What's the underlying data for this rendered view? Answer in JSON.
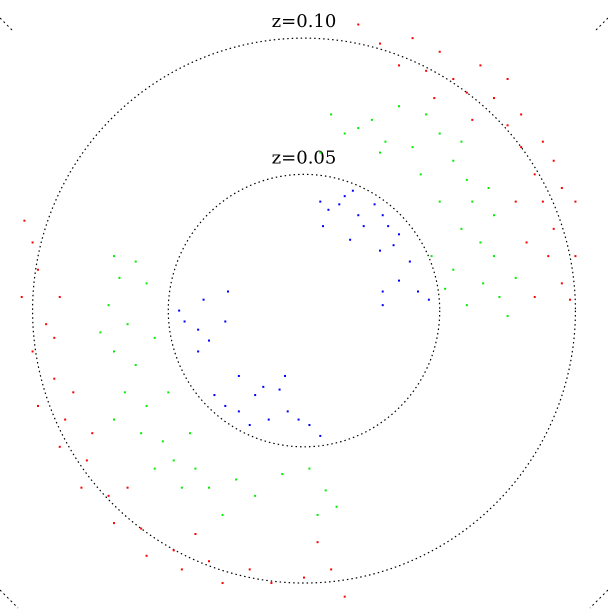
{
  "chart_data": {
    "type": "scatter",
    "xlim": [
      -0.112,
      0.112
    ],
    "ylim": [
      -0.111,
      0.114
    ],
    "circles": [
      {
        "value": 0.05,
        "label": "z=0.05"
      },
      {
        "value": 0.1,
        "label": "z=0.10"
      }
    ],
    "series": [
      {
        "color": "#0000ff",
        "x": [
          0.006,
          0.009,
          0.015,
          0.018,
          0.007,
          0.02,
          0.026,
          0.029,
          0.031,
          0.035,
          0.033,
          0.028,
          0.017,
          0.039,
          0.035,
          0.029,
          0.042,
          0.046,
          0.029,
          0.022,
          0.013,
          -0.046,
          -0.044,
          -0.039,
          -0.037,
          -0.028,
          -0.029,
          -0.035,
          -0.033,
          -0.029,
          -0.024,
          -0.018,
          -0.015,
          -0.009,
          -0.006,
          -0.002,
          0.002,
          0.006,
          -0.013,
          -0.02,
          -0.024,
          -0.007,
          -0.039
        ],
        "y": [
          0.04,
          0.037,
          0.042,
          0.044,
          0.031,
          0.035,
          0.039,
          0.035,
          0.031,
          0.028,
          0.024,
          0.022,
          0.026,
          0.018,
          0.011,
          0.007,
          0.007,
          0.004,
          0.002,
          0.031,
          0.039,
          0.0,
          -0.004,
          -0.007,
          0.004,
          0.007,
          -0.004,
          -0.011,
          -0.031,
          -0.035,
          -0.037,
          -0.031,
          -0.028,
          -0.029,
          -0.037,
          -0.04,
          -0.042,
          -0.046,
          -0.04,
          -0.042,
          -0.024,
          -0.024,
          -0.015
        ]
      },
      {
        "color": "#00ee00",
        "x": [
          0.006,
          0.015,
          0.025,
          0.03,
          0.04,
          0.045,
          0.05,
          0.055,
          0.06,
          0.062,
          0.058,
          0.065,
          0.07,
          0.066,
          0.072,
          0.075,
          0.06,
          0.055,
          0.05,
          0.043,
          0.035,
          0.02,
          0.07,
          0.068,
          0.078,
          0.052,
          0.047,
          0.058,
          0.01,
          0.028,
          -0.07,
          -0.068,
          -0.072,
          -0.065,
          -0.07,
          -0.062,
          -0.066,
          -0.058,
          -0.06,
          -0.052,
          -0.048,
          -0.04,
          -0.035,
          -0.025,
          -0.018,
          -0.008,
          0.002,
          0.008,
          0.012,
          -0.03,
          -0.045,
          -0.055,
          -0.075,
          -0.058,
          -0.055,
          -0.05,
          -0.042,
          -0.062,
          -0.07,
          0.005
        ],
        "y": [
          0.058,
          0.065,
          0.07,
          0.062,
          0.06,
          0.072,
          0.065,
          0.055,
          0.048,
          0.04,
          0.03,
          0.025,
          0.02,
          0.01,
          0.005,
          -0.002,
          0.002,
          0.015,
          0.04,
          0.05,
          0.075,
          0.067,
          0.035,
          0.045,
          0.012,
          0.008,
          0.02,
          0.062,
          0.072,
          0.058,
          0.02,
          0.012,
          0.002,
          -0.005,
          -0.015,
          -0.02,
          -0.03,
          -0.035,
          -0.045,
          -0.048,
          -0.055,
          -0.058,
          -0.065,
          -0.062,
          -0.068,
          -0.06,
          -0.058,
          -0.066,
          -0.072,
          -0.075,
          -0.065,
          -0.058,
          -0.008,
          0.01,
          -0.01,
          -0.03,
          -0.045,
          0.018,
          -0.04,
          -0.075
        ]
      },
      {
        "color": "#ff0000",
        "x": [
          0.02,
          0.028,
          0.035,
          0.045,
          0.055,
          0.06,
          0.07,
          0.075,
          0.08,
          0.085,
          0.088,
          0.092,
          0.09,
          0.095,
          0.098,
          0.085,
          0.1,
          0.095,
          0.08,
          0.065,
          0.05,
          0.04,
          0.075,
          0.088,
          0.078,
          0.082,
          0.092,
          0.1,
          0.062,
          0.048,
          -0.103,
          -0.1,
          -0.098,
          -0.104,
          -0.095,
          -0.1,
          -0.092,
          -0.098,
          -0.088,
          -0.09,
          -0.08,
          -0.082,
          -0.072,
          -0.07,
          -0.06,
          -0.058,
          -0.048,
          -0.045,
          -0.035,
          -0.03,
          -0.02,
          -0.012,
          0.0,
          0.01,
          0.015,
          -0.085,
          -0.078,
          -0.065,
          -0.04,
          0.005,
          -0.09,
          -0.092
        ],
        "y": [
          0.105,
          0.098,
          0.09,
          0.088,
          0.085,
          0.08,
          0.078,
          0.068,
          0.06,
          0.05,
          0.04,
          0.03,
          0.02,
          0.01,
          0.004,
          0.005,
          0.02,
          0.045,
          0.072,
          0.09,
          0.095,
          0.1,
          0.085,
          0.062,
          0.04,
          0.025,
          0.055,
          0.04,
          0.07,
          0.078,
          0.033,
          0.025,
          0.015,
          0.005,
          -0.005,
          -0.015,
          -0.025,
          -0.035,
          -0.04,
          -0.05,
          -0.055,
          -0.065,
          -0.068,
          -0.078,
          -0.08,
          -0.09,
          -0.088,
          -0.095,
          -0.092,
          -0.1,
          -0.095,
          -0.1,
          -0.098,
          -0.095,
          -0.105,
          -0.03,
          -0.045,
          -0.065,
          -0.082,
          -0.085,
          0.005,
          -0.01
        ]
      }
    ]
  }
}
